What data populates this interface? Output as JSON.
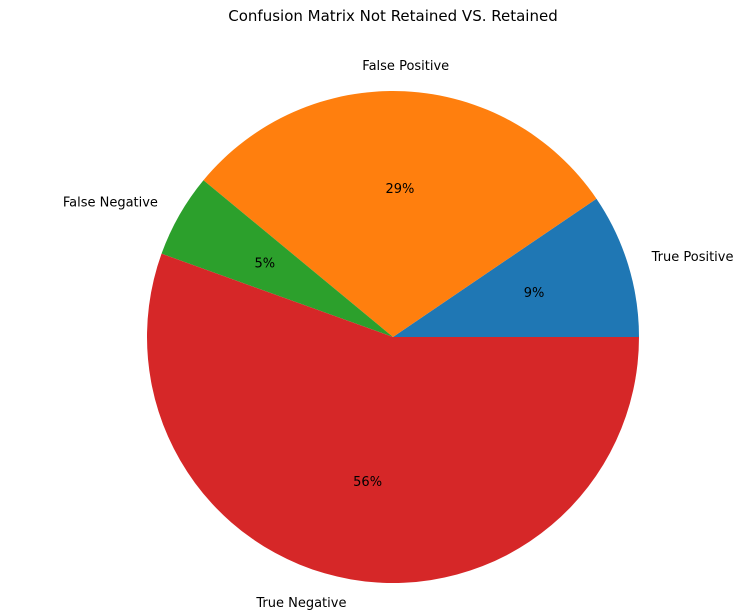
{
  "chart_data": {
    "type": "pie",
    "title": "Confusion Matrix Not Retained VS. Retained",
    "categories": [
      "True Positive",
      "False Positive",
      "False Negative",
      "True Negative"
    ],
    "values": [
      9.5,
      29.5,
      5.5,
      55.5
    ],
    "percent_labels": [
      "9%",
      "29%",
      "5%",
      "56%"
    ],
    "colors": [
      "#1f77b4",
      "#ff7f0e",
      "#2ca02c",
      "#d62728"
    ],
    "start_angle_deg": 0,
    "direction": "counterclockwise",
    "legend": "none"
  }
}
